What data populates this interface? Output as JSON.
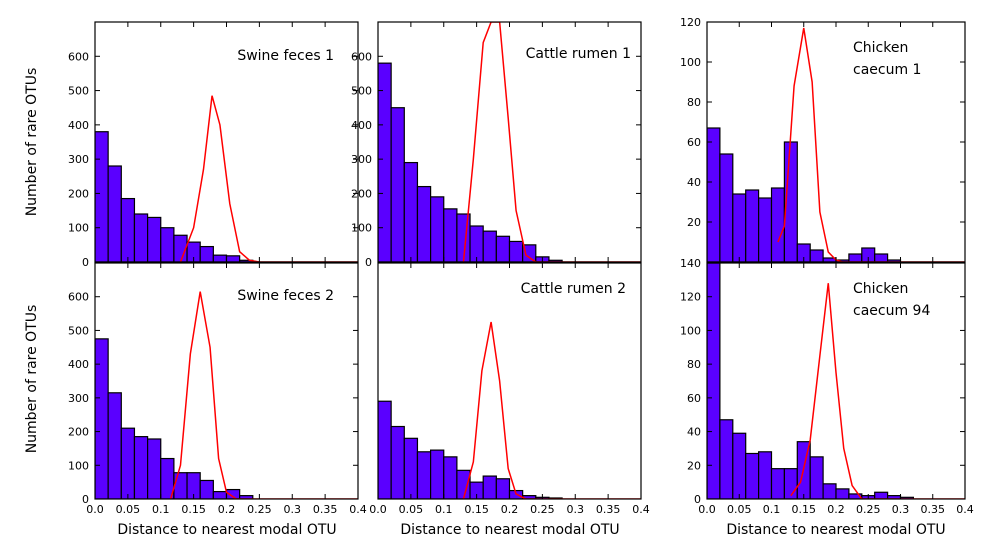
{
  "chart_data": {
    "type": "bar",
    "ylabel": "Number of rare OTUs",
    "xlabel": "Distance to nearest modal OTU",
    "xlim": [
      0,
      0.4
    ],
    "bin_width": 0.02,
    "x_ticks": [
      "0.0",
      "0.05",
      "0.1",
      "0.15",
      "0.2",
      "0.25",
      "0.3",
      "0.35",
      "0.4"
    ],
    "colors": {
      "histogram": "#5a00ff",
      "curve": "#ff0000"
    },
    "panels": [
      {
        "id": "swine1",
        "title_lines": [
          "Swine feces 1"
        ],
        "ylim": [
          0,
          700
        ],
        "y_ticks": [
          "0",
          "100",
          "200",
          "300",
          "400",
          "500",
          "600"
        ],
        "histogram": {
          "bin_starts": [
            0.01,
            0.03,
            0.05,
            0.07,
            0.09,
            0.11,
            0.13,
            0.15,
            0.17,
            0.19,
            0.21,
            0.23
          ],
          "counts": [
            380,
            280,
            185,
            140,
            130,
            100,
            78,
            58,
            45,
            20,
            18,
            5
          ]
        },
        "curve": {
          "x": [
            0.13,
            0.15,
            0.165,
            0.178,
            0.19,
            0.205,
            0.22,
            0.235,
            0.25,
            0.28,
            0.4
          ],
          "y": [
            0,
            100,
            270,
            485,
            400,
            170,
            30,
            5,
            0,
            0,
            0
          ]
        }
      },
      {
        "id": "cattle1",
        "title_lines": [
          "Cattle rumen 1"
        ],
        "ylim": [
          0,
          700
        ],
        "y_ticks": [
          "0",
          "100",
          "200",
          "300",
          "400",
          "500",
          "600"
        ],
        "histogram": {
          "bin_starts": [
            0.01,
            0.03,
            0.05,
            0.07,
            0.09,
            0.11,
            0.13,
            0.15,
            0.17,
            0.19,
            0.21,
            0.23,
            0.25,
            0.27
          ],
          "counts": [
            580,
            450,
            290,
            220,
            190,
            155,
            140,
            105,
            90,
            75,
            60,
            50,
            15,
            5
          ]
        },
        "curve": {
          "x": [
            0.13,
            0.145,
            0.16,
            0.172,
            0.185,
            0.198,
            0.21,
            0.225,
            0.24,
            0.27,
            0.4
          ],
          "y": [
            0,
            300,
            640,
            700,
            700,
            420,
            150,
            20,
            0,
            0,
            0
          ]
        }
      },
      {
        "id": "chicken1",
        "title_lines": [
          "Chicken",
          "caecum 1"
        ],
        "ylim": [
          0,
          120
        ],
        "y_ticks": [
          "20",
          "40",
          "60",
          "80",
          "100",
          "120"
        ],
        "histogram": {
          "bin_starts": [
            0.01,
            0.03,
            0.05,
            0.07,
            0.09,
            0.11,
            0.13,
            0.15,
            0.17,
            0.19,
            0.21,
            0.23,
            0.25,
            0.27,
            0.29
          ],
          "counts": [
            67,
            54,
            34,
            36,
            32,
            37,
            60,
            9,
            6,
            2,
            1,
            4,
            7,
            4,
            1
          ]
        },
        "curve": {
          "x": [
            0.11,
            0.12,
            0.135,
            0.15,
            0.163,
            0.175,
            0.188,
            0.2,
            0.21,
            0.23,
            0.25,
            0.4
          ],
          "y": [
            10,
            18,
            88,
            117,
            90,
            25,
            5,
            1,
            0,
            0,
            0,
            0
          ]
        }
      },
      {
        "id": "swine2",
        "title_lines": [
          "Swine feces 2"
        ],
        "ylim": [
          0,
          700
        ],
        "y_ticks": [
          "0",
          "100",
          "200",
          "300",
          "400",
          "500",
          "600"
        ],
        "histogram": {
          "bin_starts": [
            0.01,
            0.03,
            0.05,
            0.07,
            0.09,
            0.11,
            0.13,
            0.15,
            0.17,
            0.19,
            0.21,
            0.23
          ],
          "counts": [
            475,
            315,
            210,
            185,
            178,
            120,
            78,
            78,
            55,
            22,
            28,
            10
          ]
        },
        "curve": {
          "x": [
            0.115,
            0.13,
            0.145,
            0.16,
            0.175,
            0.188,
            0.2,
            0.215,
            0.23,
            0.25,
            0.4
          ],
          "y": [
            0,
            100,
            430,
            615,
            450,
            120,
            20,
            0,
            0,
            0,
            0
          ]
        }
      },
      {
        "id": "cattle2",
        "title_lines": [
          "Cattle rumen 2"
        ],
        "ylim": [
          0,
          700
        ],
        "y_ticks": [],
        "histogram": {
          "bin_starts": [
            0.01,
            0.03,
            0.05,
            0.07,
            0.09,
            0.11,
            0.13,
            0.15,
            0.17,
            0.19,
            0.21,
            0.23,
            0.25,
            0.27
          ],
          "counts": [
            290,
            215,
            180,
            140,
            145,
            125,
            85,
            50,
            68,
            60,
            25,
            10,
            5,
            3
          ]
        },
        "curve": {
          "x": [
            0.13,
            0.145,
            0.158,
            0.172,
            0.185,
            0.198,
            0.21,
            0.225,
            0.25,
            0.4
          ],
          "y": [
            0,
            110,
            380,
            525,
            350,
            90,
            15,
            0,
            0,
            0
          ]
        }
      },
      {
        "id": "chicken94",
        "title_lines": [
          "Chicken",
          "caecum 94"
        ],
        "ylim": [
          0,
          140
        ],
        "y_ticks": [
          "0",
          "20",
          "40",
          "60",
          "80",
          "100",
          "120",
          "140"
        ],
        "histogram": {
          "bin_starts": [
            0.01,
            0.03,
            0.05,
            0.07,
            0.09,
            0.11,
            0.13,
            0.15,
            0.17,
            0.19,
            0.21,
            0.23,
            0.25,
            0.27,
            0.29,
            0.31
          ],
          "counts": [
            140,
            47,
            39,
            27,
            28,
            18,
            18,
            34,
            25,
            9,
            6,
            3,
            2,
            4,
            2,
            1
          ]
        },
        "curve": {
          "x": [
            0.13,
            0.145,
            0.16,
            0.175,
            0.188,
            0.2,
            0.212,
            0.225,
            0.24,
            0.26,
            0.4
          ],
          "y": [
            2,
            10,
            35,
            85,
            128,
            75,
            30,
            8,
            0,
            0,
            0
          ]
        }
      }
    ]
  }
}
